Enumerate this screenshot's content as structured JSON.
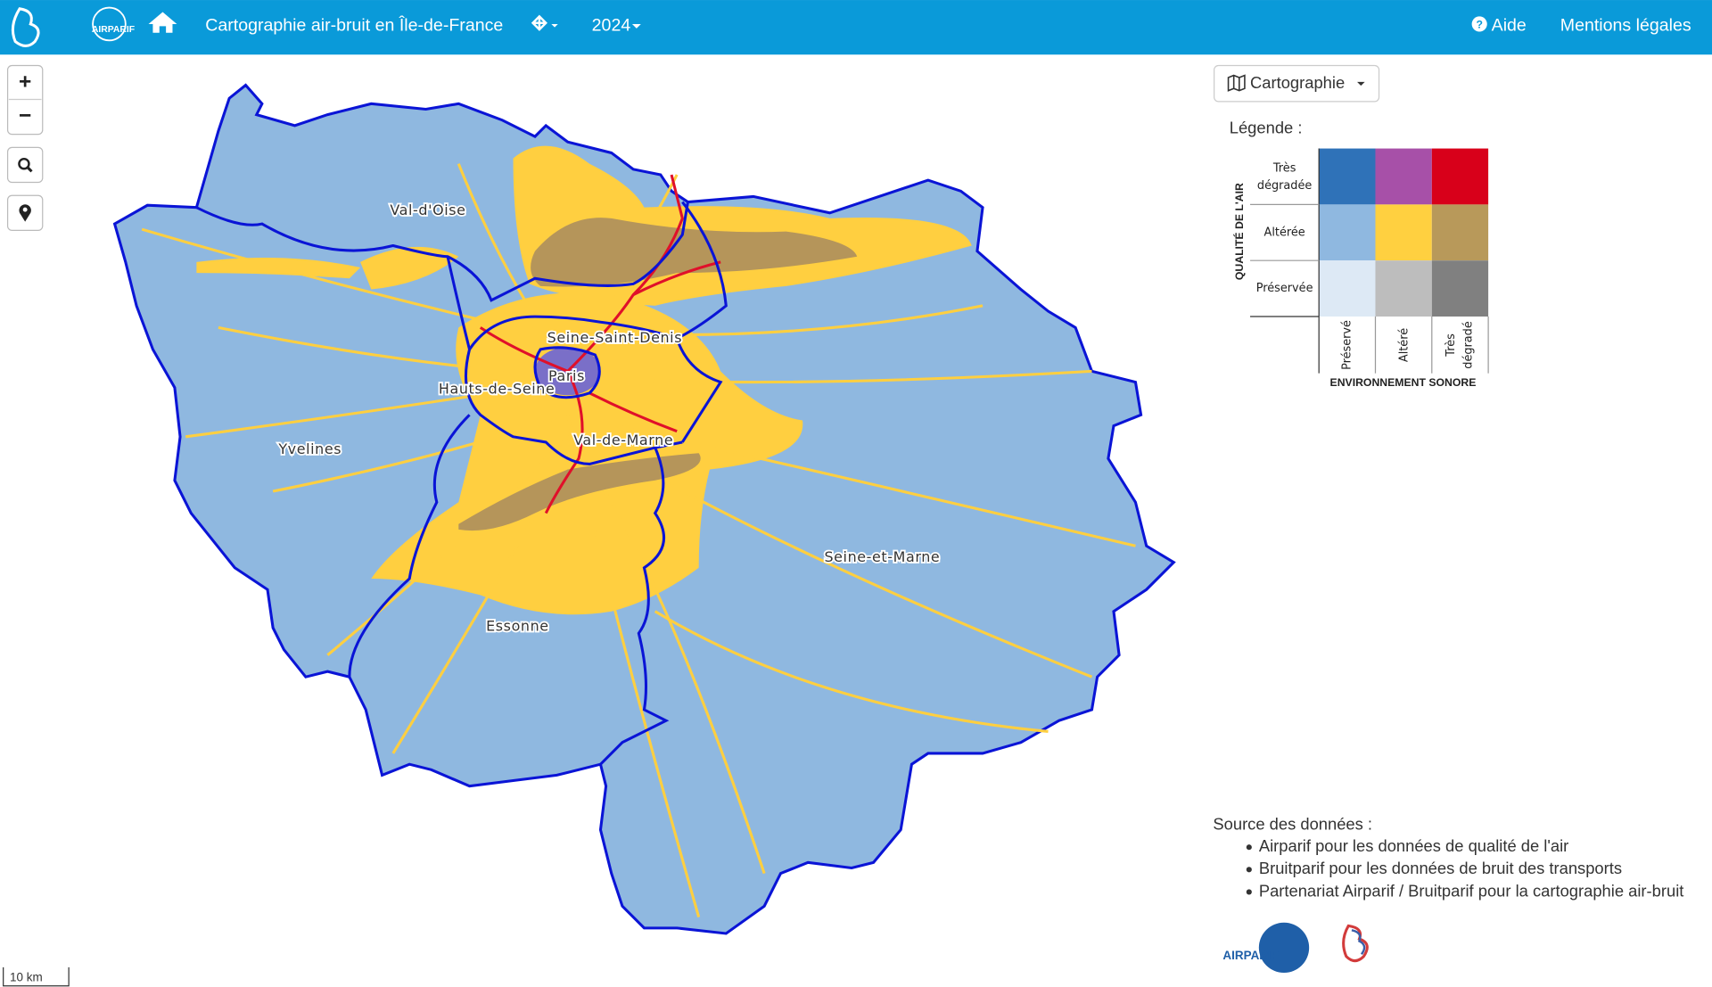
{
  "header": {
    "logo_text": "AIRPARIF",
    "title": "Cartographie air-bruit en Île-de-France",
    "year": "2024",
    "help": "Aide",
    "legal": "Mentions légales"
  },
  "map": {
    "zoom_in": "+",
    "zoom_out": "−",
    "labels": [
      "Val-d'Oise",
      "Seine-Saint-Denis",
      "Paris",
      "Hauts-de-Seine",
      "Yvelines",
      "Val-de-Marne",
      "Seine-et-Marne",
      "Essonne"
    ],
    "scale": "10 km"
  },
  "legend": {
    "button": "Cartographie",
    "title": "Légende :",
    "y_title": "QUALITÉ DE L'AIR",
    "x_title": "ENVIRONNEMENT SONORE",
    "rows": [
      "Très dégradée",
      "Altérée",
      "Préservée"
    ],
    "columns": [
      "Préservé",
      "Altéré",
      "Très dégradé"
    ],
    "colors": [
      [
        "#2f72b8",
        "#a750a8",
        "#d8001a"
      ],
      [
        "#8fb8e0",
        "#ffd040",
        "#b8995a"
      ],
      [
        "#dde9f5",
        "#bdbdbd",
        "#808080"
      ]
    ]
  },
  "sources": {
    "title": "Source des données :",
    "items": [
      "Airparif pour les données de qualité de l'air",
      "Bruitparif pour les données de bruit des transports",
      "Partenariat Airparif / Bruitparif pour la cartographie air-bruit"
    ]
  },
  "footer": {
    "logo_text": "AIRPARIF"
  }
}
